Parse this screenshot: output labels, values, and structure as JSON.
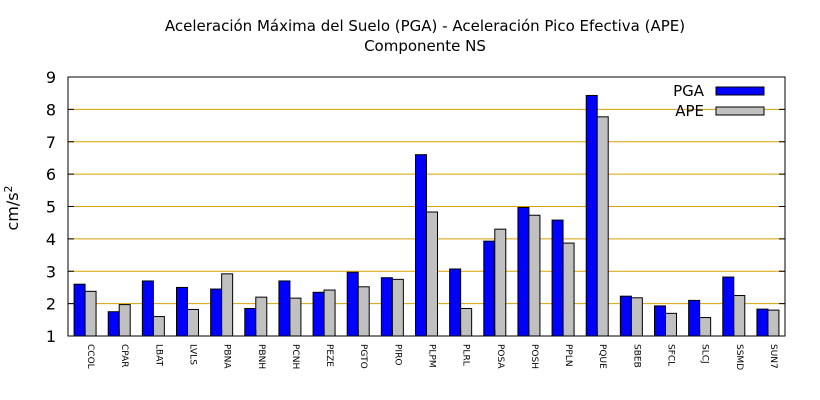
{
  "chart_data": {
    "type": "bar",
    "title": "Aceleración Máxima del Suelo (PGA) -  Aceleración Pico Efectiva (APE)",
    "subtitle": "Componente NS",
    "xlabel": "",
    "ylabel": "cm/s",
    "ylabel_sup": "2",
    "ylim": [
      1,
      9
    ],
    "yticks": [
      "1",
      "2",
      "3",
      "4",
      "5",
      "6",
      "7",
      "8",
      "9"
    ],
    "grid": true,
    "legend_position": "top-right",
    "categories": [
      "CCOL",
      "CPAR",
      "LBAT",
      "LVLS",
      "PBNA",
      "PBNH",
      "PCNH",
      "PEZE",
      "PGTO",
      "PIRO",
      "PLPM",
      "PLRL",
      "POSA",
      "POSH",
      "PPLN",
      "PQUE",
      "SBEB",
      "SFCL",
      "SLCJ",
      "SSMD",
      "SUN7"
    ],
    "series": [
      {
        "name": "PGA",
        "color": "#0000ff",
        "values": [
          2.6,
          1.75,
          2.7,
          2.5,
          2.45,
          1.85,
          2.7,
          2.35,
          2.97,
          2.8,
          6.6,
          3.07,
          3.93,
          4.97,
          4.58,
          8.43,
          2.23,
          1.93,
          2.1,
          2.82,
          1.83
        ]
      },
      {
        "name": "APE",
        "color": "#c0c0c0",
        "values": [
          2.38,
          1.97,
          1.6,
          1.82,
          2.92,
          2.2,
          2.17,
          2.42,
          2.52,
          2.75,
          4.83,
          1.85,
          4.3,
          4.73,
          3.87,
          7.77,
          2.18,
          1.7,
          1.57,
          2.25,
          1.8
        ]
      }
    ]
  }
}
